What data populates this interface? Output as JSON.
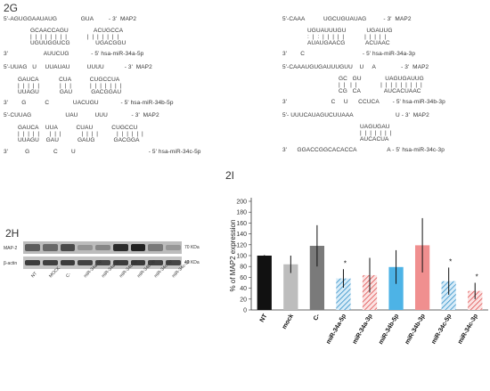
{
  "panel_g": {
    "label": "2G",
    "top_left": [
      "5'-AGUGGAAUAUG              GUA         - 3'  MAP2",
      "GCAACCAGU               ACUGCCA",
      "|  |  |  |  |  |  |  |            |  |  |  |  |  |  |",
      "UGUUGGUCG               UGACGGU",
      "3'                     AUUCUG             - 5' hsa-miR-34a-5p"
    ],
    "top_right": [
      "5'-CAAA           UGCUGUAUAG          - 3'  MAP2",
      "UGUAUUUGU            UGAUUG",
      ":  |  :  |  |  |  |  |            |  |  |  |  |",
      "AUAUGAACG            ACUAAC",
      "3'        C                                  - 5' hsa-miR-34a-3p"
    ],
    "mid_left": [
      "5'-UUAG   U     UUAUAU          UUUU            - 3'  MAP2",
      "GAUCA            CUA           CUGCCUA",
      "|  |  |  |  |            |  |  |           |  |  |  |  |  |  |",
      "UUAGU            GAU           GACGGAU",
      "3'        G           C              UACUGU             - 5' hsa-miR-34b-5p"
    ],
    "mid_right": [
      "5'-CAAAUGUGAUUUGUU    U     A               - 3'  MAP2",
      "GC   GU              UAGUGAUUG",
      "|  |   |  |              |  |  |  |  |  |  |  |  |",
      "CG   CA              AUCACUAAC",
      "3'                          C     U      CCUCA        - 5' hsa-miR-34b-3p"
    ],
    "bot_left": [
      "5'-CUUAG                    UAU          UUU              - 3'  MAP2",
      "GAUCA    UUA           CUAU           CUGCCU",
      "|  |  |  |  |      |  |  |            |  |  |  |           |  |  |  |  |  |",
      "UUAGU    GAU           GAUG           GACGGA",
      "3'          G              C        U                                           - 5' hsa-miR-34c-5p"
    ],
    "bot_right": [
      "5'- UUUCAUAGUCUUAAA                         U - 3'  MAP2",
      "UAGUGAU",
      "|  |  |  |  |  |  |",
      "AUCACUA",
      "3'      GGACCGGCACACCA                  A - 5' hsa-miR-34c-3p"
    ]
  },
  "panel_h": {
    "label": "2H",
    "rows": [
      "MAP-2",
      "β-actin"
    ],
    "markers": [
      "70 KDa",
      "43 KDa"
    ],
    "lanes": [
      "NT",
      "MOCK",
      "C-",
      "miR-34a-5p",
      "miR-34a-3p",
      "miR-34b-5p",
      "miR-34b-3p",
      "miR-34c-5p",
      "miR-34c-3p"
    ],
    "map2_intensity": [
      0.62,
      0.55,
      0.72,
      0.3,
      0.38,
      0.9,
      0.95,
      0.45,
      0.28
    ],
    "actin_intensity": [
      0.8,
      0.78,
      0.8,
      0.76,
      0.74,
      0.8,
      0.82,
      0.78,
      0.75
    ]
  },
  "panel_i": {
    "label": "2I"
  },
  "colors": {
    "black": "#111111",
    "gray_light": "#bdbdbd",
    "gray_dark": "#7a7a7a",
    "blue": "#4db3e6",
    "blue_hatch": "#2f8ec8",
    "red": "#f08f8f",
    "red_hatch": "#e0504f"
  },
  "chart_data": {
    "type": "bar",
    "categories": [
      "NT",
      "mock",
      "C-",
      "miR-34a-5p",
      "miR-34a-3p",
      "miR-34b-5p",
      "miR-34b-3p",
      "miR-34c-5p",
      "miR-34c-3p"
    ],
    "values": [
      100,
      84,
      118,
      58,
      64,
      79,
      119,
      53,
      35
    ],
    "error": [
      1,
      16,
      38,
      17,
      32,
      31,
      50,
      25,
      15
    ],
    "significance": [
      "",
      "",
      "",
      "*",
      "",
      "",
      "",
      "*",
      "*"
    ],
    "ylabel": "% of MAP2 expression",
    "ylim": [
      0,
      200
    ],
    "yticks": [
      0,
      20,
      40,
      60,
      80,
      100,
      120,
      140,
      160,
      180,
      200
    ],
    "grid": false
  }
}
